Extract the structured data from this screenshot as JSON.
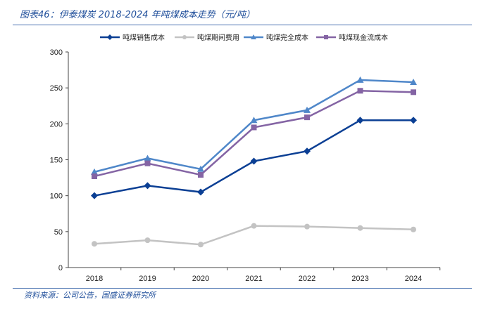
{
  "title": "图表46：伊泰煤炭 2018-2024 年吨煤成本走势（元/吨）",
  "source": "资料来源：公司公告，国盛证券研究所",
  "chart_data": {
    "type": "line",
    "title": "伊泰煤炭 2018-2024 年吨煤成本走势（元/吨）",
    "xlabel": "",
    "ylabel": "",
    "categories": [
      "2018",
      "2019",
      "2020",
      "2021",
      "2022",
      "2023",
      "2024"
    ],
    "ylim": [
      0,
      300
    ],
    "yticks": [
      0,
      50,
      100,
      150,
      200,
      250,
      300
    ],
    "legend_position": "top",
    "series": [
      {
        "name": "吨煤销售成本",
        "color": "#0b3f94",
        "marker": "diamond",
        "values": [
          100,
          114,
          105,
          148,
          162,
          205,
          205
        ]
      },
      {
        "name": "吨煤期间费用",
        "color": "#c3c3c3",
        "marker": "circle",
        "values": [
          33,
          38,
          32,
          58,
          57,
          55,
          53
        ]
      },
      {
        "name": "吨煤完全成本",
        "color": "#4f87c9",
        "marker": "triangle",
        "values": [
          133,
          152,
          137,
          205,
          219,
          261,
          258
        ]
      },
      {
        "name": "吨煤现金流成本",
        "color": "#8464a4",
        "marker": "square",
        "values": [
          127,
          145,
          129,
          195,
          209,
          246,
          244
        ]
      }
    ]
  }
}
